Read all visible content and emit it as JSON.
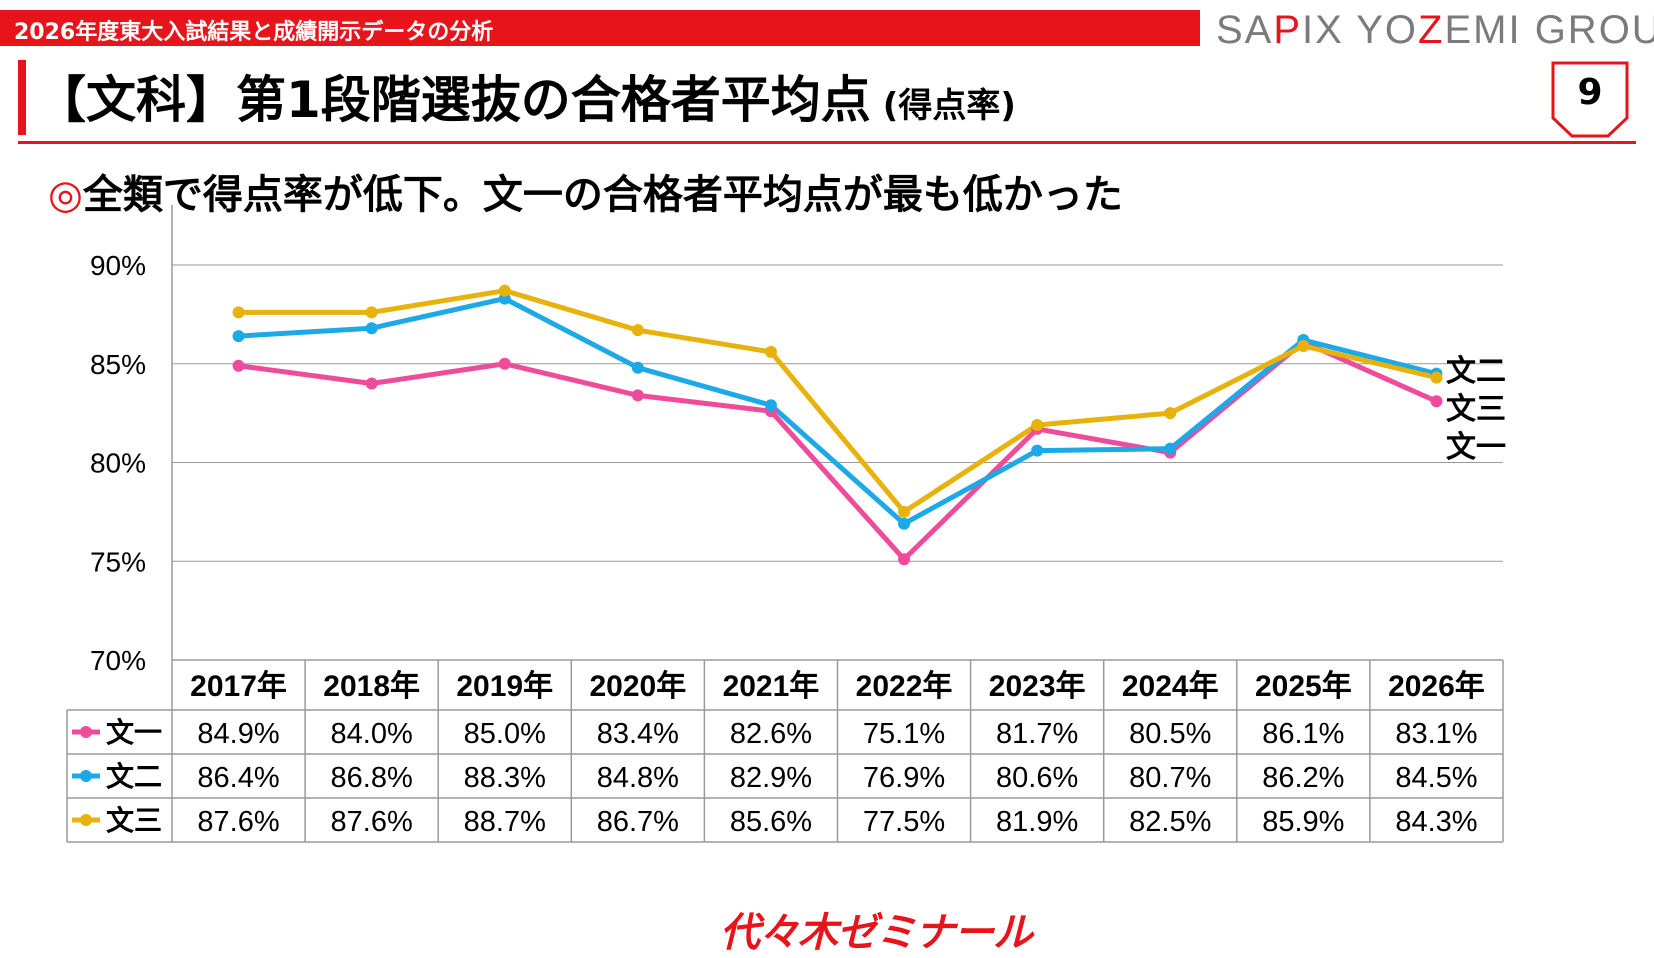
{
  "header": {
    "banner_text": "2026年度東大入試結果と成績開示データの分析",
    "brand_prefix": "SA",
    "brand_highlight": "P",
    "brand_middle": "IX YO",
    "brand_highlight2": "Z",
    "brand_suffix": "EMI GROUP",
    "page_number": "9"
  },
  "title": {
    "main": "【文科】第1段階選抜の合格者平均点",
    "sub": "(得点率)"
  },
  "subtitle": {
    "mark": "◎",
    "text": "全類で得点率が低下。文一の合格者平均点が最も低かった"
  },
  "colors": {
    "accent": "#e8141b",
    "bun1": "#ee4c9b",
    "bun2": "#1da8e8",
    "bun3": "#e8b20c"
  },
  "chart_data": {
    "type": "line",
    "categories": [
      "2017年",
      "2018年",
      "2019年",
      "2020年",
      "2021年",
      "2022年",
      "2023年",
      "2024年",
      "2025年",
      "2026年"
    ],
    "series": [
      {
        "name": "文一",
        "values": [
          84.9,
          84.0,
          85.0,
          83.4,
          82.6,
          75.1,
          81.7,
          80.5,
          86.1,
          83.1
        ],
        "labels": [
          "84.9%",
          "84.0%",
          "85.0%",
          "83.4%",
          "82.6%",
          "75.1%",
          "81.7%",
          "80.5%",
          "86.1%",
          "83.1%"
        ]
      },
      {
        "name": "文二",
        "values": [
          86.4,
          86.8,
          88.3,
          84.8,
          82.9,
          76.9,
          80.6,
          80.7,
          86.2,
          84.5
        ],
        "labels": [
          "86.4%",
          "86.8%",
          "88.3%",
          "84.8%",
          "82.9%",
          "76.9%",
          "80.6%",
          "80.7%",
          "86.2%",
          "84.5%"
        ]
      },
      {
        "name": "文三",
        "values": [
          87.6,
          87.6,
          88.7,
          86.7,
          85.6,
          77.5,
          81.9,
          82.5,
          85.9,
          84.3
        ],
        "labels": [
          "87.6%",
          "87.6%",
          "88.7%",
          "86.7%",
          "85.6%",
          "77.5%",
          "81.9%",
          "82.5%",
          "85.9%",
          "84.3%"
        ]
      }
    ],
    "end_labels": [
      "文二",
      "文三",
      "文一"
    ],
    "ylim": [
      70,
      90
    ],
    "yticks": [
      "70%",
      "75%",
      "80%",
      "85%",
      "90%"
    ],
    "grid": true,
    "legend": "data-table"
  },
  "footer": {
    "logo_text": "代々木ゼミナール"
  }
}
